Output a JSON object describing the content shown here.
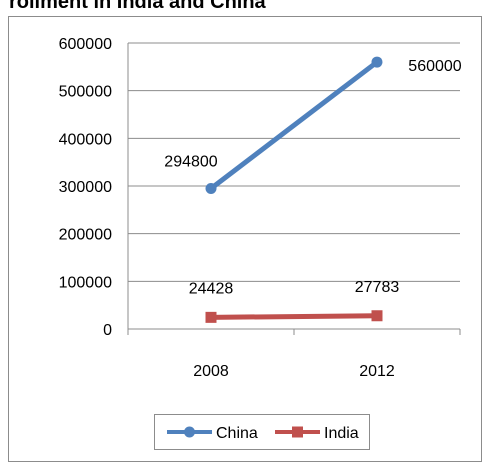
{
  "title": "rollment in India and China",
  "chart_data": {
    "type": "line",
    "title": "rollment in India and China",
    "categories": [
      "2008",
      "2012"
    ],
    "series": [
      {
        "name": "China",
        "values": [
          294800,
          560000
        ],
        "color": "#4f81bd",
        "marker": "circle"
      },
      {
        "name": "India",
        "values": [
          24428,
          27783
        ],
        "color": "#c0504d",
        "marker": "square"
      }
    ],
    "ylim": [
      0,
      600000
    ],
    "yticks": [
      "0",
      "100000",
      "200000",
      "300000",
      "400000",
      "500000",
      "600000"
    ],
    "data_labels": {
      "China": [
        "294800",
        "560000"
      ],
      "India": [
        "24428",
        "27783"
      ]
    },
    "grid": true,
    "legend": "bottom"
  }
}
